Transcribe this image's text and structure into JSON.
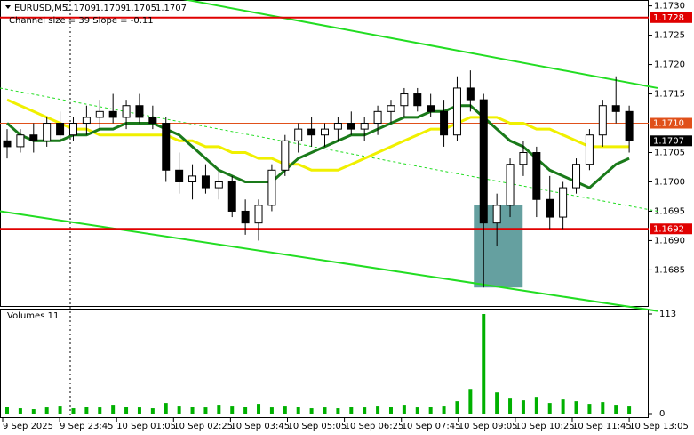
{
  "chart_data": {
    "type": "candlestick",
    "title": "EURUSD,M5",
    "header_values": [
      1.1709,
      1.1709,
      1.1705,
      1.1707
    ],
    "subtitle": "Channel size = 39 Slope = -0.11",
    "x_labels": [
      "9 Sep 2025",
      "9 Sep 23:45",
      "10 Sep 01:05",
      "10 Sep 02:25",
      "10 Sep 03:45",
      "10 Sep 05:05",
      "10 Sep 06:25",
      "10 Sep 07:45",
      "10 Sep 09:05",
      "10 Sep 10:25",
      "10 Sep 11:45",
      "10 Sep 13:05"
    ],
    "open": [
      1.1707,
      1.1706,
      1.1708,
      1.1707,
      1.171,
      1.1708,
      1.171,
      1.1711,
      1.1712,
      1.1711,
      1.1713,
      1.1711,
      1.171,
      1.1702,
      1.17,
      1.1701,
      1.1699,
      1.17,
      1.1695,
      1.1693,
      1.1696,
      1.1702,
      1.1707,
      1.1709,
      1.1708,
      1.1709,
      1.171,
      1.1709,
      1.171,
      1.1712,
      1.1713,
      1.1715,
      1.1713,
      1.1712,
      1.1708,
      1.1716,
      1.1714,
      1.1693,
      1.1696,
      1.1703,
      1.1705,
      1.1697,
      1.1694,
      1.1699,
      1.1703,
      1.1708,
      1.1713,
      1.1712
    ],
    "high": [
      1.1709,
      1.1709,
      1.171,
      1.1711,
      1.1712,
      1.1711,
      1.1713,
      1.1714,
      1.1715,
      1.1714,
      1.1715,
      1.1713,
      1.1711,
      1.1705,
      1.1703,
      1.1703,
      1.1702,
      1.1701,
      1.1697,
      1.1697,
      1.1703,
      1.1708,
      1.171,
      1.1711,
      1.171,
      1.1711,
      1.1712,
      1.1711,
      1.1713,
      1.1714,
      1.1716,
      1.1716,
      1.1715,
      1.1714,
      1.1718,
      1.1719,
      1.1715,
      1.1698,
      1.1704,
      1.1707,
      1.1706,
      1.1701,
      1.17,
      1.1704,
      1.1709,
      1.1714,
      1.1718,
      1.1713
    ],
    "low": [
      1.1704,
      1.1705,
      1.1705,
      1.1706,
      1.1707,
      1.1707,
      1.1708,
      1.1709,
      1.171,
      1.1709,
      1.171,
      1.1709,
      1.17,
      1.1698,
      1.1697,
      1.1698,
      1.1697,
      1.1694,
      1.1691,
      1.169,
      1.1695,
      1.1701,
      1.1705,
      1.1706,
      1.1706,
      1.1707,
      1.1708,
      1.1707,
      1.1708,
      1.171,
      1.1711,
      1.1712,
      1.1711,
      1.1706,
      1.1707,
      1.1712,
      1.1682,
      1.1689,
      1.1694,
      1.1701,
      1.1694,
      1.1692,
      1.1692,
      1.1698,
      1.1702,
      1.1706,
      1.171,
      1.1705
    ],
    "close": [
      1.1706,
      1.1708,
      1.1707,
      1.171,
      1.1708,
      1.171,
      1.1711,
      1.1712,
      1.1711,
      1.1713,
      1.1711,
      1.171,
      1.1702,
      1.17,
      1.1701,
      1.1699,
      1.17,
      1.1695,
      1.1693,
      1.1696,
      1.1702,
      1.1707,
      1.1709,
      1.1708,
      1.1709,
      1.171,
      1.1709,
      1.171,
      1.1712,
      1.1713,
      1.1715,
      1.1713,
      1.1712,
      1.1708,
      1.1716,
      1.1714,
      1.1693,
      1.1696,
      1.1703,
      1.1705,
      1.1697,
      1.1694,
      1.1699,
      1.1703,
      1.1708,
      1.1713,
      1.1712,
      1.1707
    ],
    "series": [
      {
        "color": "#f0f000",
        "values": [
          1.1714,
          1.1713,
          1.1712,
          1.1711,
          1.171,
          1.1709,
          1.1709,
          1.1708,
          1.1708,
          1.1708,
          1.1708,
          1.1708,
          1.1708,
          1.1707,
          1.1707,
          1.1706,
          1.1706,
          1.1705,
          1.1705,
          1.1704,
          1.1704,
          1.1703,
          1.1703,
          1.1702,
          1.1702,
          1.1702,
          1.1703,
          1.1704,
          1.1705,
          1.1706,
          1.1707,
          1.1708,
          1.1709,
          1.1709,
          1.171,
          1.1711,
          1.1711,
          1.1711,
          1.171,
          1.171,
          1.1709,
          1.1709,
          1.1708,
          1.1707,
          1.1706,
          1.1706,
          1.1706,
          1.1706
        ]
      },
      {
        "color": "#1a7a1a",
        "values": [
          1.171,
          1.1708,
          1.1707,
          1.1707,
          1.1707,
          1.1708,
          1.1708,
          1.1709,
          1.1709,
          1.171,
          1.171,
          1.171,
          1.1709,
          1.1708,
          1.1706,
          1.1704,
          1.1702,
          1.1701,
          1.17,
          1.17,
          1.17,
          1.1702,
          1.1704,
          1.1705,
          1.1706,
          1.1707,
          1.1708,
          1.1708,
          1.1709,
          1.171,
          1.1711,
          1.1711,
          1.1712,
          1.1712,
          1.1713,
          1.1713,
          1.1711,
          1.1709,
          1.1707,
          1.1706,
          1.1704,
          1.1702,
          1.1701,
          1.17,
          1.1699,
          1.1701,
          1.1703,
          1.1704
        ]
      }
    ],
    "ylim": [
      1.1679,
      1.1731
    ],
    "yticks": [
      {
        "value": 1.173,
        "label": "1.1730"
      },
      1.1725,
      {
        "value": 1.172,
        "label": "1.1720"
      },
      1.1715,
      1.1705,
      {
        "value": 1.17,
        "label": "1.1700"
      },
      1.1695,
      {
        "value": 1.169,
        "label": "1.1690"
      },
      1.1685
    ],
    "levels": [
      {
        "value": 1.1728,
        "color": "#e00000"
      },
      {
        "value": {
          "value": 1.171,
          "label": "1.1710"
        },
        "color": "#e0501a"
      },
      {
        "value": 1.1692,
        "color": "#e00000"
      }
    ],
    "current_price": 1.1707,
    "trendlines": [
      {
        "values": [
          1.1737,
          1.1716
        ],
        "color": "#22dd22",
        "dashed": false
      },
      {
        "values": [
          1.1716,
          1.1695
        ],
        "color": "#22dd22",
        "dashed": true
      },
      {
        "values": [
          1.1695,
          1.1678
        ],
        "color": "#22dd22",
        "dashed": false
      }
    ],
    "zone": {
      "high": 1.1696,
      "low": 1.1682,
      "color": "#4a8f8f"
    },
    "volume_title": "Volumes 11",
    "volumes": [
      8,
      6,
      5,
      7,
      9,
      6,
      8,
      7,
      10,
      8,
      7,
      6,
      12,
      9,
      8,
      7,
      10,
      9,
      8,
      11,
      7,
      9,
      8,
      6,
      7,
      6,
      8,
      7,
      9,
      8,
      10,
      7,
      8,
      9,
      14,
      28,
      113,
      24,
      18,
      15,
      19,
      12,
      16,
      14,
      11,
      13,
      10,
      9
    ],
    "volume_color": "#00b000",
    "volume_ylim": [
      0,
      113
    ],
    "volume_ticks": [
      113,
      0
    ]
  }
}
